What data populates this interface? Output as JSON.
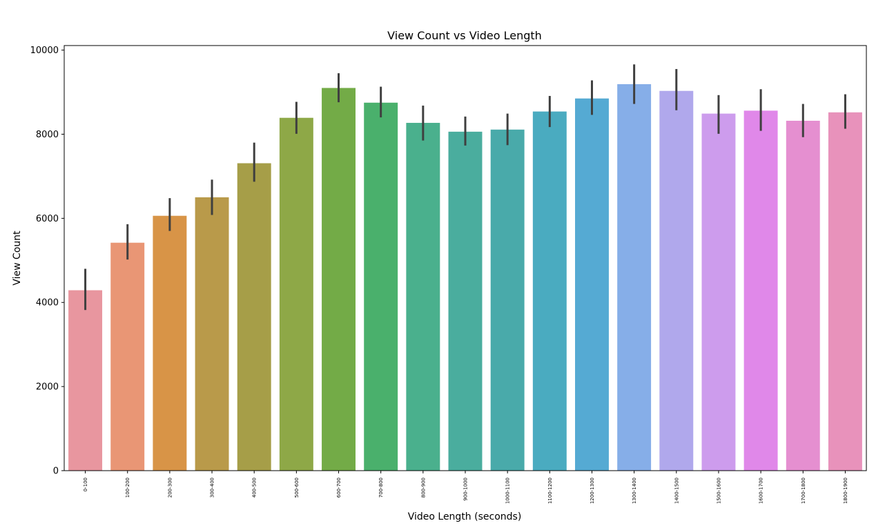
{
  "chart_data": {
    "type": "bar",
    "title": "View Count vs Video Length",
    "xlabel": "Video Length (seconds)",
    "ylabel": "View Count",
    "ylim": [
      0,
      10000
    ],
    "yticks": [
      0,
      2000,
      4000,
      6000,
      8000,
      10000
    ],
    "grid": false,
    "categories": [
      "0-100",
      "100-200",
      "200-300",
      "300-400",
      "400-500",
      "500-600",
      "600-700",
      "700-800",
      "800-900",
      "900-1000",
      "1000-1100",
      "1100-1200",
      "1200-1300",
      "1300-1400",
      "1400-1500",
      "1500-1600",
      "1600-1700",
      "1700-1800",
      "1800-1900"
    ],
    "values": [
      4290,
      5420,
      6060,
      6500,
      7310,
      8390,
      9100,
      8750,
      8270,
      8060,
      8110,
      8540,
      8850,
      9190,
      9030,
      8490,
      8560,
      8320,
      8520
    ],
    "error_low": [
      3820,
      5020,
      5700,
      6080,
      6870,
      8010,
      8760,
      8400,
      7850,
      7730,
      7740,
      8170,
      8460,
      8720,
      8570,
      8010,
      8080,
      7930,
      8130
    ],
    "error_high": [
      4800,
      5860,
      6480,
      6920,
      7800,
      8770,
      9450,
      9130,
      8680,
      8420,
      8490,
      8910,
      9280,
      9660,
      9550,
      8930,
      9070,
      8720,
      8950
    ],
    "colors": [
      "#e8969f",
      "#e99675",
      "#d89447",
      "#b99a4a",
      "#a69e48",
      "#8ea847",
      "#73ab47",
      "#4ab06c",
      "#4ab08d",
      "#4aad9e",
      "#49aaaa",
      "#4aabc0",
      "#55aad3",
      "#86aee8",
      "#b0a8ec",
      "#cd9ced",
      "#e088e9",
      "#e58fd0",
      "#e892bb"
    ]
  }
}
